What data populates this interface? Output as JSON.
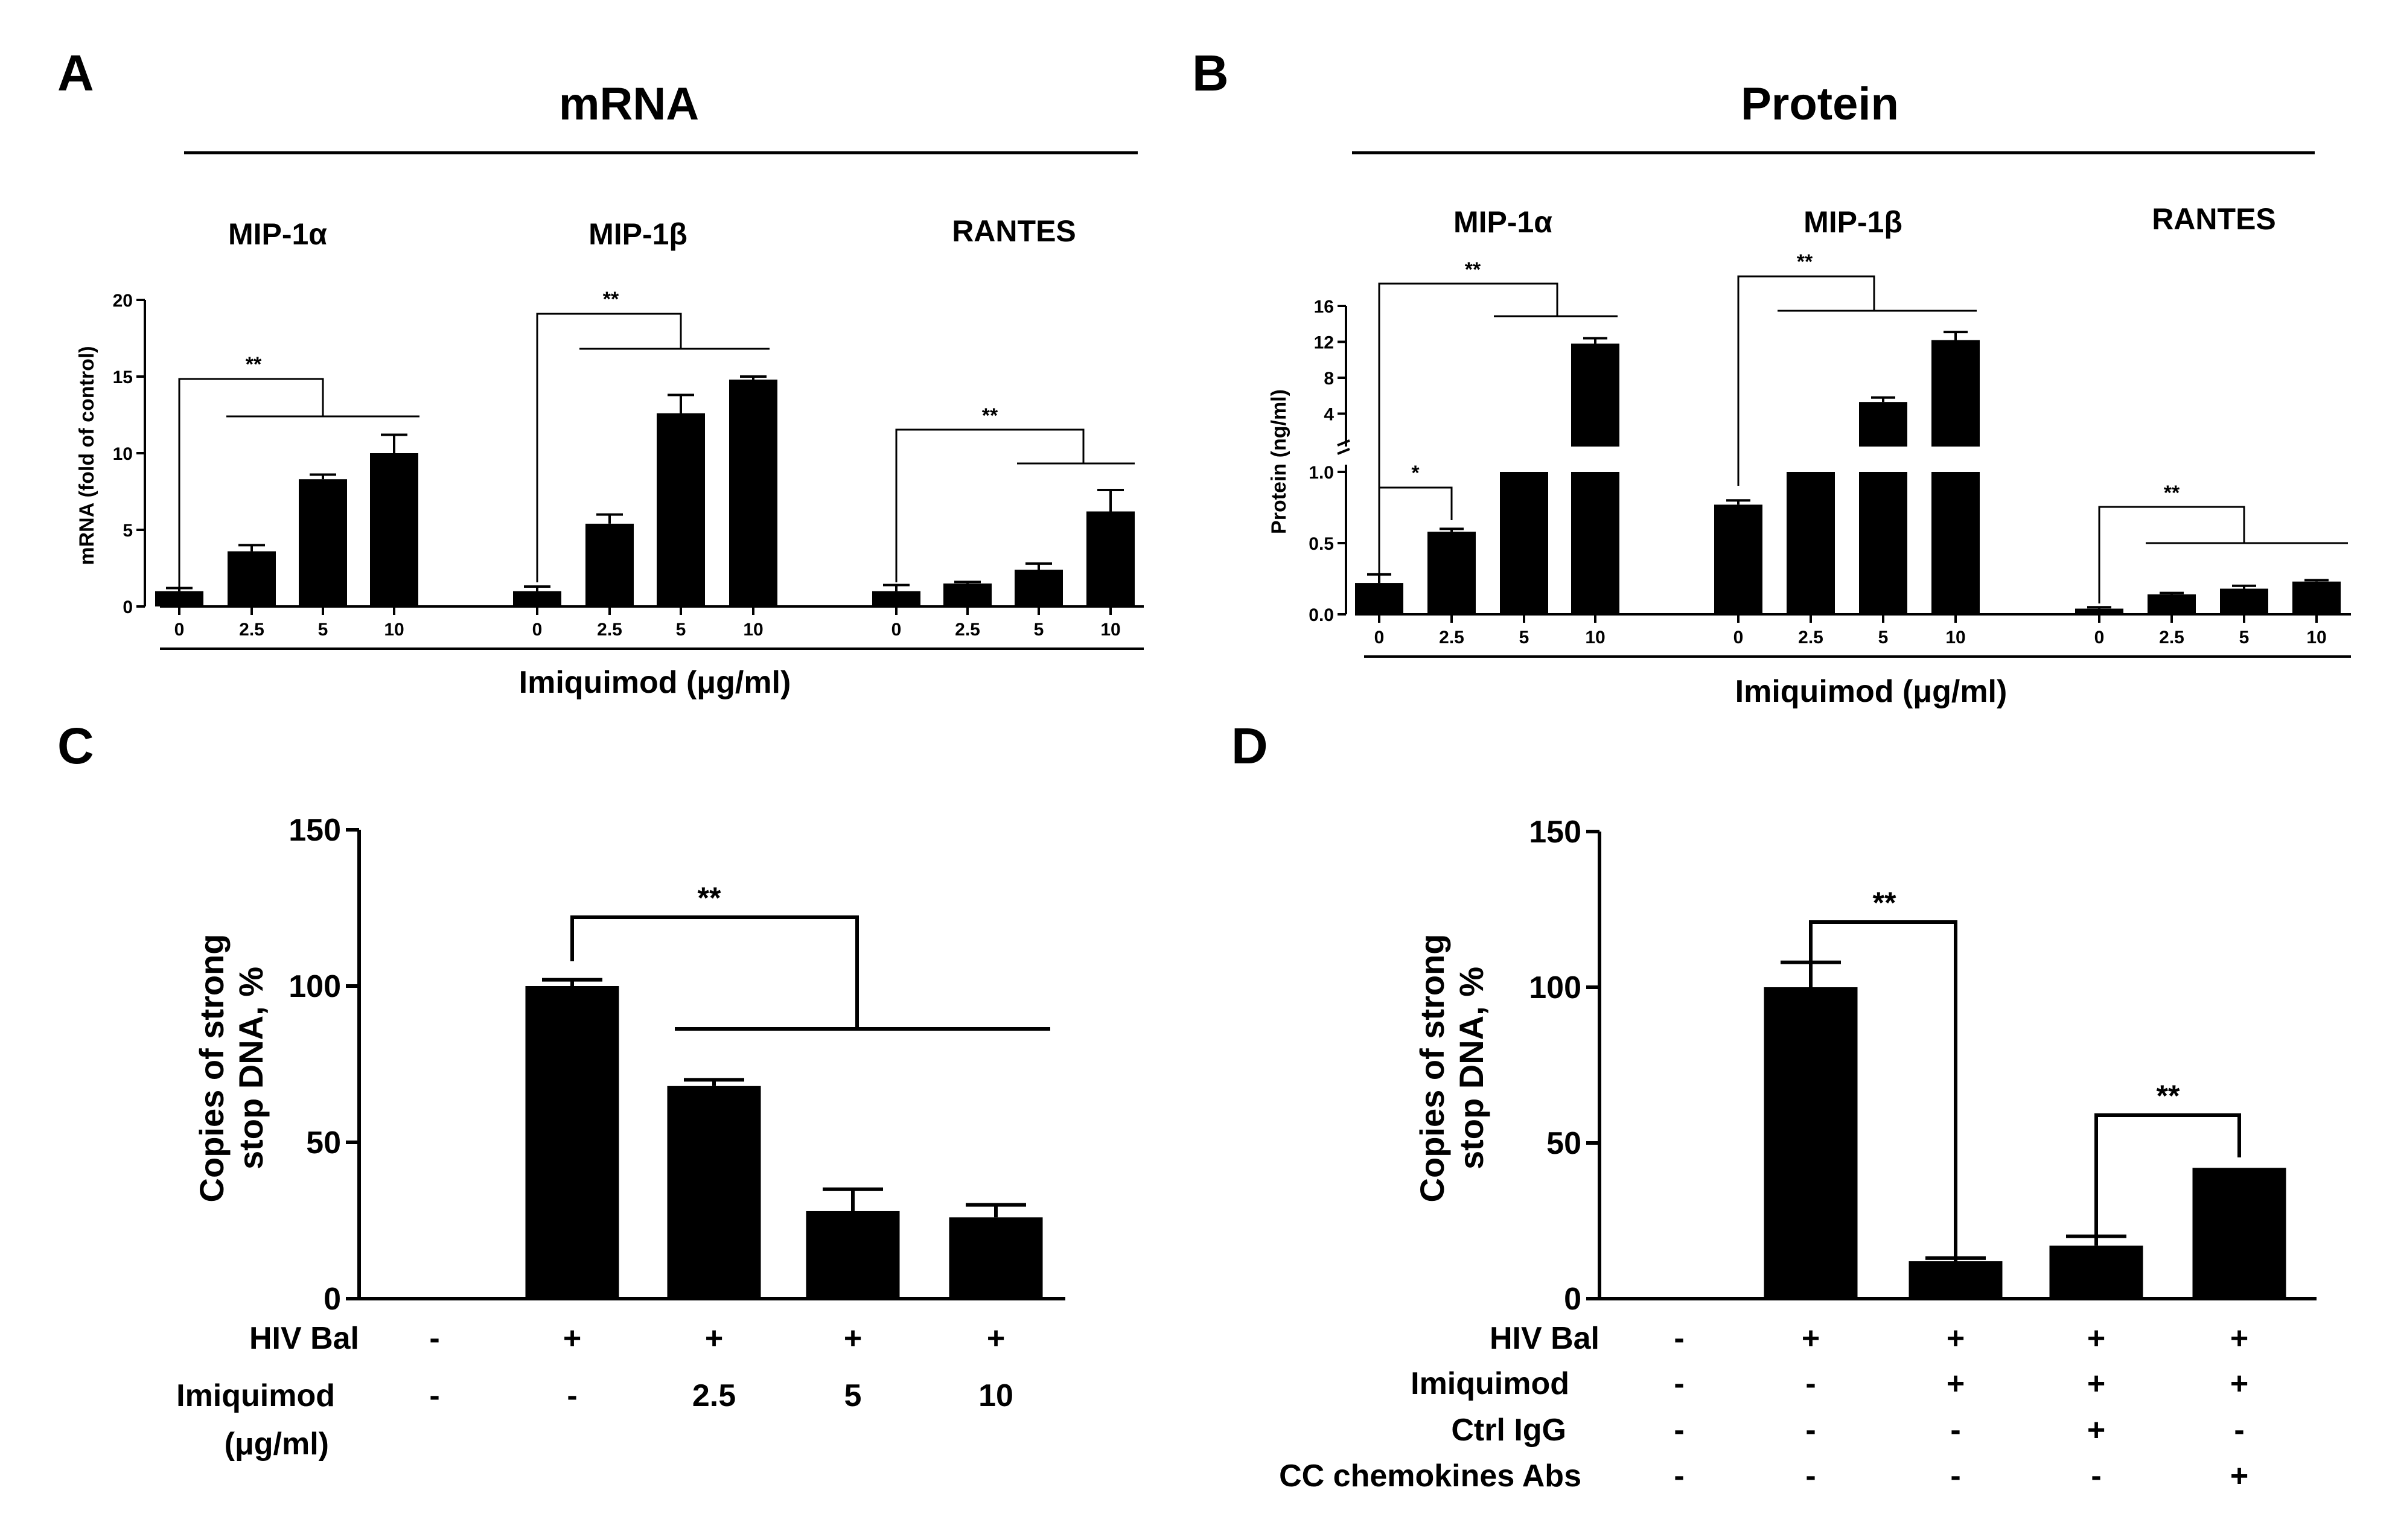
{
  "colors": {
    "bar": "#000000",
    "background": "#ffffff"
  },
  "panel_labels": {
    "a": "A",
    "b": "B",
    "c": "C",
    "d": "D"
  },
  "chart_data": [
    {
      "panel": "A",
      "type": "bar",
      "title": "mRNA",
      "ylabel": "mRNA (fold of control)",
      "xlabel": "Imiquimod (μg/ml)",
      "ylim": [
        0,
        20
      ],
      "yticks": [
        "0",
        "5",
        "10",
        "15",
        "20"
      ],
      "categories": [
        "0",
        "2.5",
        "5",
        "10"
      ],
      "series": [
        {
          "name": "MIP-1α",
          "values": [
            1.0,
            3.6,
            8.3,
            10.0
          ],
          "errors": [
            0.2,
            0.4,
            0.3,
            1.2
          ]
        },
        {
          "name": "MIP-1β",
          "values": [
            1.0,
            5.4,
            12.6,
            14.8
          ],
          "errors": [
            0.3,
            0.6,
            1.2,
            0.2
          ]
        },
        {
          "name": "RANTES",
          "values": [
            1.0,
            1.5,
            2.4,
            6.2
          ],
          "errors": [
            0.4,
            0.1,
            0.4,
            1.4
          ]
        }
      ],
      "significance": [
        "**",
        "**",
        "**"
      ]
    },
    {
      "panel": "B",
      "type": "bar",
      "title": "Protein",
      "ylabel": "Protein (ng/ml)",
      "xlabel": "Imiquimod (μg/ml)",
      "ylim": [
        0,
        16
      ],
      "axis_break": 1.0,
      "yticks_lower": [
        "0.0",
        "0.5",
        "1.0"
      ],
      "yticks_upper": [
        "4",
        "8",
        "12",
        "16"
      ],
      "categories": [
        "0",
        "2.5",
        "5",
        "10"
      ],
      "series": [
        {
          "name": "MIP-1α",
          "values": [
            0.22,
            0.58,
            1.0,
            11.8
          ],
          "errors": [
            0.06,
            0.02,
            0,
            0.6
          ]
        },
        {
          "name": "MIP-1β",
          "values": [
            0.77,
            1.0,
            5.3,
            12.2
          ],
          "errors": [
            0.03,
            0,
            0.5,
            0.9
          ]
        },
        {
          "name": "RANTES",
          "values": [
            0.04,
            0.14,
            0.18,
            0.23
          ],
          "errors": [
            0.01,
            0.01,
            0.02,
            0.01
          ]
        }
      ],
      "significance": [
        "*",
        "**",
        "**",
        "**"
      ]
    },
    {
      "panel": "C",
      "type": "bar",
      "ylabel": "Copies of strong stop DNA, %",
      "ylabel_lines": [
        "Copies of strong",
        "stop DNA, %"
      ],
      "ylim": [
        0,
        150
      ],
      "yticks": [
        "0",
        "50",
        "100",
        "150"
      ],
      "values": [
        0,
        100,
        68,
        28,
        26
      ],
      "errors": [
        0,
        2,
        2,
        7,
        4
      ],
      "row_labels": [
        "HIV Bal",
        "Imiquimod",
        "(μg/ml)"
      ],
      "rows": [
        [
          "-",
          "+",
          "+",
          "+",
          "+"
        ],
        [
          "-",
          "-",
          "2.5",
          "5",
          "10"
        ]
      ],
      "significance": "**"
    },
    {
      "panel": "D",
      "type": "bar",
      "ylabel": "Copies of strong stop DNA, %",
      "ylabel_lines": [
        "Copies of strong",
        "stop DNA, %"
      ],
      "ylim": [
        0,
        150
      ],
      "yticks": [
        "0",
        "50",
        "100",
        "150"
      ],
      "values": [
        0,
        100,
        12,
        17,
        42
      ],
      "errors": [
        0,
        8,
        1,
        3,
        0
      ],
      "row_labels": [
        "HIV Bal",
        "Imiquimod",
        "Ctrl IgG",
        "CC chemokines Abs"
      ],
      "rows": [
        [
          "-",
          "+",
          "+",
          "+",
          "+"
        ],
        [
          "-",
          "-",
          "+",
          "+",
          "+"
        ],
        [
          "-",
          "-",
          "-",
          "+",
          "-"
        ],
        [
          "-",
          "-",
          "-",
          "-",
          "+"
        ]
      ],
      "significance": [
        "**",
        "**"
      ]
    }
  ]
}
